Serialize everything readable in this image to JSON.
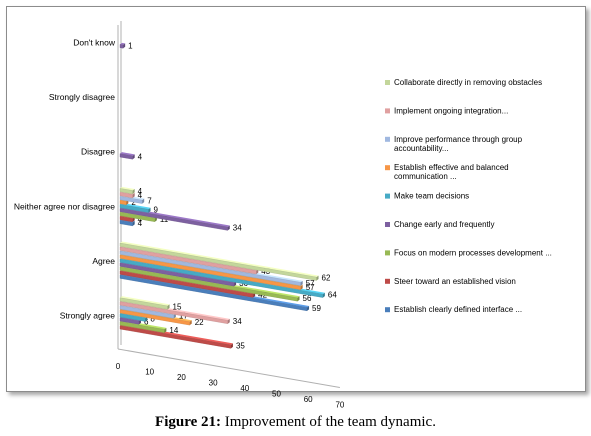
{
  "caption": {
    "prefix": "Figure 21:",
    "text": " Improvement of the team dynamic."
  },
  "chart_data": {
    "type": "bar",
    "orientation": "horizontal",
    "style": "3d-clustered",
    "categories": [
      "Strongly agree",
      "Agree",
      "Neither agree nor disagree",
      "Disagree",
      "Strongly disagree",
      "Don't know"
    ],
    "xlim": [
      0,
      70
    ],
    "xticks": [
      0,
      10,
      20,
      30,
      40,
      50,
      60,
      70
    ],
    "legend_position": "right",
    "series": [
      {
        "name": "Establish clearly defined interface ...",
        "color": "#4a7ebb",
        "values": [
          null,
          59,
          4,
          null,
          null,
          null
        ]
      },
      {
        "name": "Steer toward an established vision",
        "color": "#be4b48",
        "values": [
          35,
          42,
          4,
          null,
          null,
          null
        ]
      },
      {
        "name": "Focus on modern processes development ...",
        "color": "#98b954",
        "values": [
          14,
          56,
          11,
          null,
          null,
          null
        ]
      },
      {
        "name": "Change early and frequently",
        "color": "#7d60a0",
        "values": [
          6,
          36,
          34,
          4,
          null,
          1
        ]
      },
      {
        "name": "Make team decisions",
        "color": "#46aac5",
        "values": [
          8,
          64,
          9,
          null,
          null,
          null
        ]
      },
      {
        "name": "Establish effective and balanced communication ...",
        "color": "#f79646",
        "values": [
          22,
          57,
          2,
          null,
          null,
          null
        ]
      },
      {
        "name": "Improve performance through group accountability...",
        "color": "#a0b8e0",
        "values": [
          17,
          57,
          7,
          null,
          null,
          null
        ]
      },
      {
        "name": "Implement ongoing integration...",
        "color": "#e0a0a0",
        "values": [
          34,
          43,
          4,
          null,
          null,
          null
        ]
      },
      {
        "name": "Collaborate directly in removing obstacles",
        "color": "#c3d69b",
        "values": [
          15,
          62,
          4,
          null,
          null,
          null
        ]
      }
    ]
  }
}
